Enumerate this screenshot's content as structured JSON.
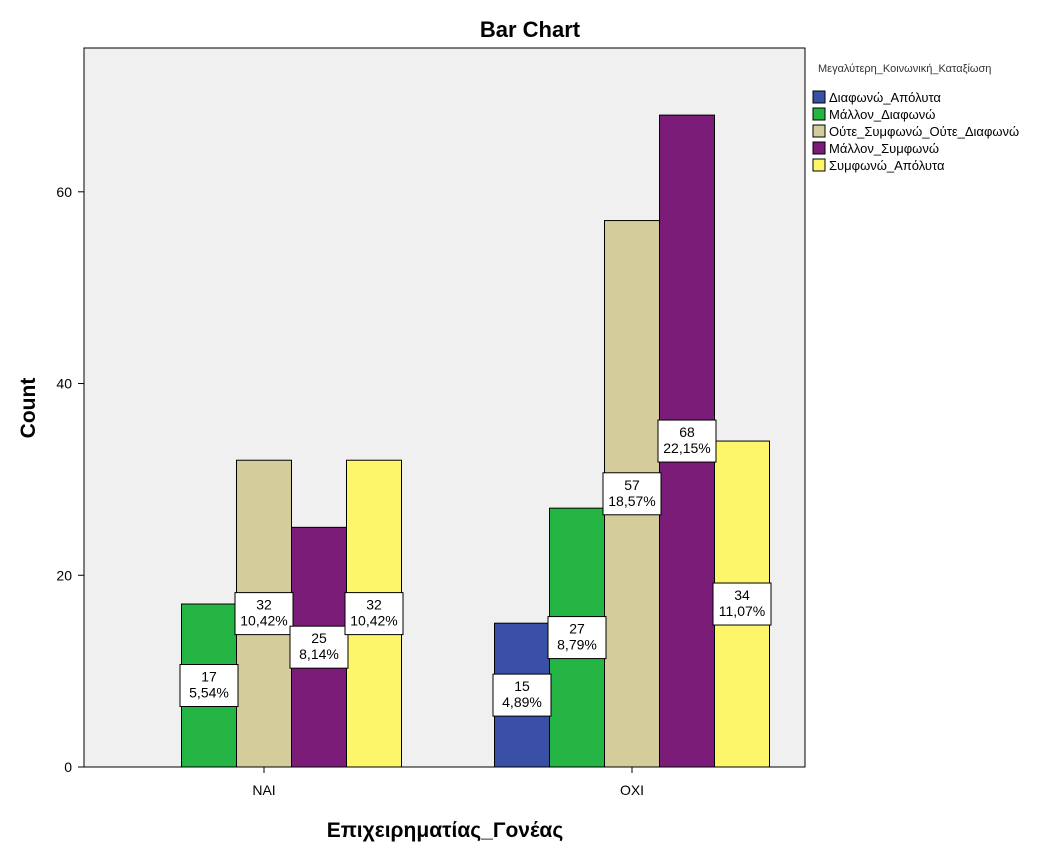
{
  "chart_data": {
    "type": "bar",
    "title": "Bar Chart",
    "xlabel": "Επιχειρηματίας_Γονέας",
    "ylabel": "Count",
    "categories": [
      "ΝΑΙ",
      "ΟΧΙ"
    ],
    "ylim": [
      0,
      75
    ],
    "yticks": [
      0,
      20,
      40,
      60
    ],
    "grid": false,
    "legend": {
      "title": "Μεγαλύτερη_Κοινωνική_Καταξίωση",
      "placement": "top-right"
    },
    "series": [
      {
        "name": "Διαφωνώ_Απόλυτα",
        "color": "#3a4fa6",
        "values": [
          null,
          15
        ],
        "labels": [
          "",
          "15\n4,89%"
        ]
      },
      {
        "name": "Μάλλον_Διαφωνώ",
        "color": "#25b545",
        "values": [
          17,
          27
        ],
        "labels": [
          "17\n5,54%",
          "27\n8,79%"
        ]
      },
      {
        "name": "Ούτε_Συμφωνώ_Ούτε_Διαφωνώ",
        "color": "#d4cc9a",
        "values": [
          32,
          57
        ],
        "labels": [
          "32\n10,42%",
          "57\n18,57%"
        ]
      },
      {
        "name": "Μάλλον_Συμφωνώ",
        "color": "#7b1d78",
        "values": [
          25,
          68
        ],
        "labels": [
          "25\n8,14%",
          "68\n22,15%"
        ]
      },
      {
        "name": "Συμφωνώ_Απόλυτα",
        "color": "#fdf56a",
        "values": [
          32,
          34
        ],
        "labels": [
          "32\n10,42%",
          "34\n11,07%"
        ]
      }
    ],
    "plot_background": "#f0f0f0"
  }
}
